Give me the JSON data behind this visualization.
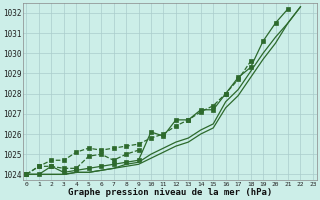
{
  "x": [
    0,
    1,
    2,
    3,
    4,
    5,
    6,
    7,
    8,
    9,
    10,
    11,
    12,
    13,
    14,
    15,
    16,
    17,
    18,
    19,
    20,
    21,
    22,
    23
  ],
  "line_color": "#2d6a2d",
  "bg_color": "#cceee8",
  "grid_color": "#aacccc",
  "ylabel_ticks": [
    1024,
    1025,
    1026,
    1027,
    1028,
    1029,
    1030,
    1031,
    1032
  ],
  "xlabel": "Graphe pression niveau de la mer (hPa)",
  "xlim": [
    -0.3,
    23.3
  ],
  "ylim": [
    1023.7,
    1032.5
  ],
  "y1": [
    1024.0,
    1024.0,
    1024.0,
    1024.0,
    1024.1,
    1024.1,
    1024.2,
    1024.3,
    1024.4,
    1024.5,
    1024.8,
    1025.1,
    1025.4,
    1025.6,
    1026.0,
    1026.3,
    1027.3,
    1027.9,
    1028.8,
    1029.7,
    1030.5,
    1031.5,
    1032.3,
    null
  ],
  "y2": [
    1024.0,
    1024.0,
    1024.0,
    1024.0,
    1024.1,
    1024.1,
    1024.2,
    1024.3,
    1024.5,
    1024.6,
    1025.0,
    1025.3,
    1025.6,
    1025.8,
    1026.2,
    1026.5,
    1027.6,
    1028.2,
    1029.1,
    1030.0,
    1030.8,
    1031.5,
    1032.3,
    null
  ],
  "y3_marked": [
    1024.0,
    1024.0,
    1024.4,
    1024.1,
    1024.2,
    1024.3,
    1024.4,
    1024.5,
    1024.6,
    1024.7,
    1026.1,
    1025.9,
    1026.7,
    1026.7,
    1027.2,
    1027.2,
    1028.0,
    1028.8,
    1029.3,
    1030.6,
    1031.5,
    1032.2,
    null,
    null
  ],
  "y4_dashed": [
    1024.0,
    1024.4,
    1024.4,
    1024.3,
    1024.3,
    1024.9,
    1025.0,
    1024.7,
    1025.0,
    1025.2,
    null,
    null,
    null,
    null,
    null,
    null,
    null,
    null,
    null,
    null,
    null,
    null,
    null,
    null
  ],
  "y5_dashed2": [
    1024.0,
    1024.4,
    1024.7,
    1024.7,
    1025.1,
    1025.3,
    1025.2,
    1025.3,
    1025.4,
    1025.5,
    1025.8,
    1026.0,
    1026.4,
    1026.7,
    1027.1,
    1027.4,
    1028.0,
    1028.7,
    1029.6,
    null,
    null,
    null,
    null,
    null
  ]
}
